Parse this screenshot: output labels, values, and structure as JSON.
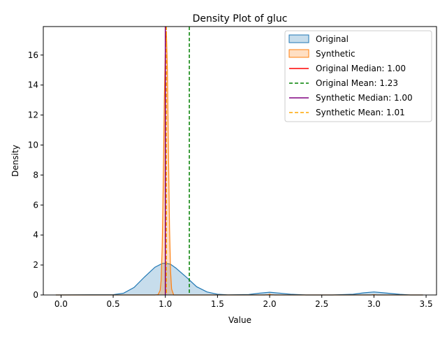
{
  "chart_data": {
    "type": "area",
    "title": "Density Plot of gluc",
    "xlabel": "Value",
    "ylabel": "Density",
    "xlim": [
      -0.17,
      3.6
    ],
    "ylim": [
      0,
      17.9
    ],
    "x_ticks": [
      0.0,
      0.5,
      1.0,
      1.5,
      2.0,
      2.5,
      3.0,
      3.5
    ],
    "x_tick_labels": [
      "0.0",
      "0.5",
      "1.0",
      "1.5",
      "2.0",
      "2.5",
      "3.0",
      "3.5"
    ],
    "y_ticks": [
      0,
      2,
      4,
      6,
      8,
      10,
      12,
      14,
      16
    ],
    "y_tick_labels": [
      "0",
      "2",
      "4",
      "6",
      "8",
      "10",
      "12",
      "14",
      "16"
    ],
    "grid": false,
    "legend_position": "top-right",
    "series": [
      {
        "name": "Original",
        "kind": "density",
        "line_color": "#1f77b4",
        "fill_color": "#1f77b4",
        "points": [
          [
            -0.05,
            0.0
          ],
          [
            0.5,
            0.02
          ],
          [
            0.6,
            0.12
          ],
          [
            0.7,
            0.5
          ],
          [
            0.8,
            1.2
          ],
          [
            0.9,
            1.85
          ],
          [
            0.97,
            2.1
          ],
          [
            1.0,
            2.12
          ],
          [
            1.05,
            2.05
          ],
          [
            1.1,
            1.8
          ],
          [
            1.2,
            1.2
          ],
          [
            1.3,
            0.55
          ],
          [
            1.4,
            0.2
          ],
          [
            1.5,
            0.05
          ],
          [
            1.6,
            0.01
          ],
          [
            1.8,
            0.03
          ],
          [
            1.9,
            0.12
          ],
          [
            2.0,
            0.18
          ],
          [
            2.1,
            0.12
          ],
          [
            2.2,
            0.05
          ],
          [
            2.35,
            0.0
          ],
          [
            2.6,
            0.0
          ],
          [
            2.8,
            0.05
          ],
          [
            2.9,
            0.14
          ],
          [
            3.0,
            0.2
          ],
          [
            3.1,
            0.14
          ],
          [
            3.25,
            0.04
          ],
          [
            3.35,
            0.0
          ],
          [
            3.47,
            0.0
          ]
        ]
      },
      {
        "name": "Synthetic",
        "kind": "density",
        "line_color": "#ff7f0e",
        "fill_color": "#ff7f0e",
        "points": [
          [
            -0.05,
            0.0
          ],
          [
            0.9,
            0.0
          ],
          [
            0.93,
            0.02
          ],
          [
            0.95,
            0.3
          ],
          [
            0.96,
            1.0
          ],
          [
            0.97,
            3.2
          ],
          [
            0.98,
            7.5
          ],
          [
            0.99,
            13.0
          ],
          [
            1.0,
            16.5
          ],
          [
            1.01,
            17.6
          ],
          [
            1.02,
            15.0
          ],
          [
            1.03,
            9.5
          ],
          [
            1.04,
            4.5
          ],
          [
            1.05,
            1.6
          ],
          [
            1.06,
            0.4
          ],
          [
            1.08,
            0.0
          ],
          [
            1.95,
            0.0
          ],
          [
            1.99,
            0.02
          ],
          [
            2.0,
            0.05
          ],
          [
            2.01,
            0.02
          ],
          [
            2.05,
            0.0
          ],
          [
            2.97,
            0.0
          ],
          [
            3.0,
            0.02
          ],
          [
            3.03,
            0.0
          ],
          [
            3.47,
            0.0
          ]
        ]
      }
    ],
    "reference_lines": [
      {
        "name": "Original Median: 1.00",
        "value": 1.0,
        "color": "#ff0000",
        "style": "solid"
      },
      {
        "name": "Original Mean: 1.23",
        "value": 1.23,
        "color": "#008000",
        "style": "dashed"
      },
      {
        "name": "Synthetic Median: 1.00",
        "value": 1.0,
        "color": "#800080",
        "style": "solid"
      },
      {
        "name": "Synthetic Mean: 1.01",
        "value": 1.01,
        "color": "#ffa500",
        "style": "dashed"
      }
    ]
  }
}
